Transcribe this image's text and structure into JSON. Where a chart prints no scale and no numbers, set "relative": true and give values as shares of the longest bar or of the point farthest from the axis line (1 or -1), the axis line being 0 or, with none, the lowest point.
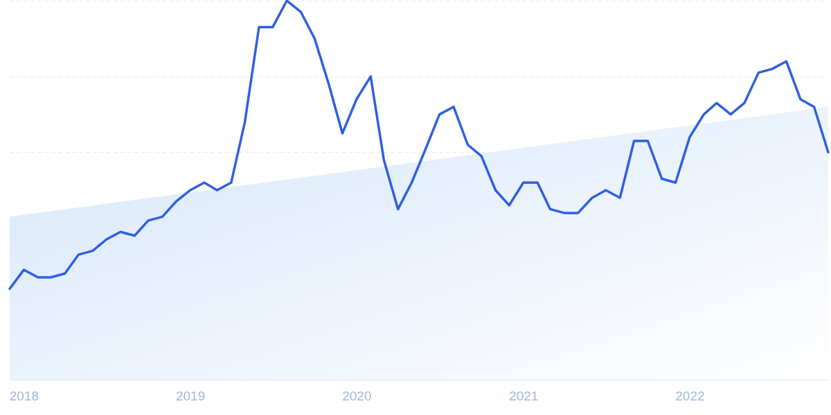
{
  "chart_data": {
    "type": "line",
    "relative": true,
    "grid": "y",
    "marker": "none",
    "line_style": "solid",
    "xlim": [
      "2017-12",
      "2022-11"
    ],
    "xticks": [
      {
        "value": "2018-01",
        "label": "2018"
      },
      {
        "value": "2019-01",
        "label": "2019"
      },
      {
        "value": "2020-01",
        "label": "2020"
      },
      {
        "value": "2021-01",
        "label": "2021"
      },
      {
        "value": "2022-01",
        "label": "2022"
      }
    ],
    "series": [
      {
        "type": "area",
        "color": "#d6e6fa",
        "x": [
          "2017-12",
          "2022-11"
        ],
        "values": [
          0.43,
          0.72
        ]
      },
      {
        "color": "#2f5fe0",
        "x": [
          "2017-12",
          "2018-01",
          "2018-02",
          "2018-03",
          "2018-04",
          "2018-05",
          "2018-06",
          "2018-07",
          "2018-08",
          "2018-09",
          "2018-10",
          "2018-11",
          "2018-12",
          "2019-01",
          "2019-02",
          "2019-03",
          "2019-04",
          "2019-05",
          "2019-06",
          "2019-07",
          "2019-08",
          "2019-09",
          "2019-10",
          "2019-11",
          "2019-12",
          "2020-01",
          "2020-02",
          "2020-03",
          "2020-04",
          "2020-05",
          "2020-06",
          "2020-07",
          "2020-08",
          "2020-09",
          "2020-10",
          "2020-11",
          "2020-12",
          "2021-01",
          "2021-02",
          "2021-03",
          "2021-04",
          "2021-05",
          "2021-06",
          "2021-07",
          "2021-08",
          "2021-09",
          "2021-10",
          "2021-11",
          "2021-12",
          "2022-01",
          "2022-02",
          "2022-03",
          "2022-04",
          "2022-05",
          "2022-06",
          "2022-07",
          "2022-08",
          "2022-09",
          "2022-10",
          "2022-11"
        ],
        "values": [
          0.24,
          0.29,
          0.27,
          0.27,
          0.28,
          0.33,
          0.34,
          0.37,
          0.39,
          0.38,
          0.42,
          0.43,
          0.47,
          0.5,
          0.52,
          0.5,
          0.52,
          0.68,
          0.93,
          0.93,
          1.0,
          0.97,
          0.9,
          0.78,
          0.65,
          0.74,
          0.8,
          0.58,
          0.45,
          0.52,
          0.61,
          0.7,
          0.72,
          0.62,
          0.59,
          0.5,
          0.46,
          0.52,
          0.52,
          0.45,
          0.44,
          0.44,
          0.48,
          0.5,
          0.48,
          0.63,
          0.63,
          0.53,
          0.52,
          0.64,
          0.7,
          0.73,
          0.7,
          0.73,
          0.81,
          0.82,
          0.84,
          0.74,
          0.72,
          0.6
        ]
      }
    ]
  }
}
